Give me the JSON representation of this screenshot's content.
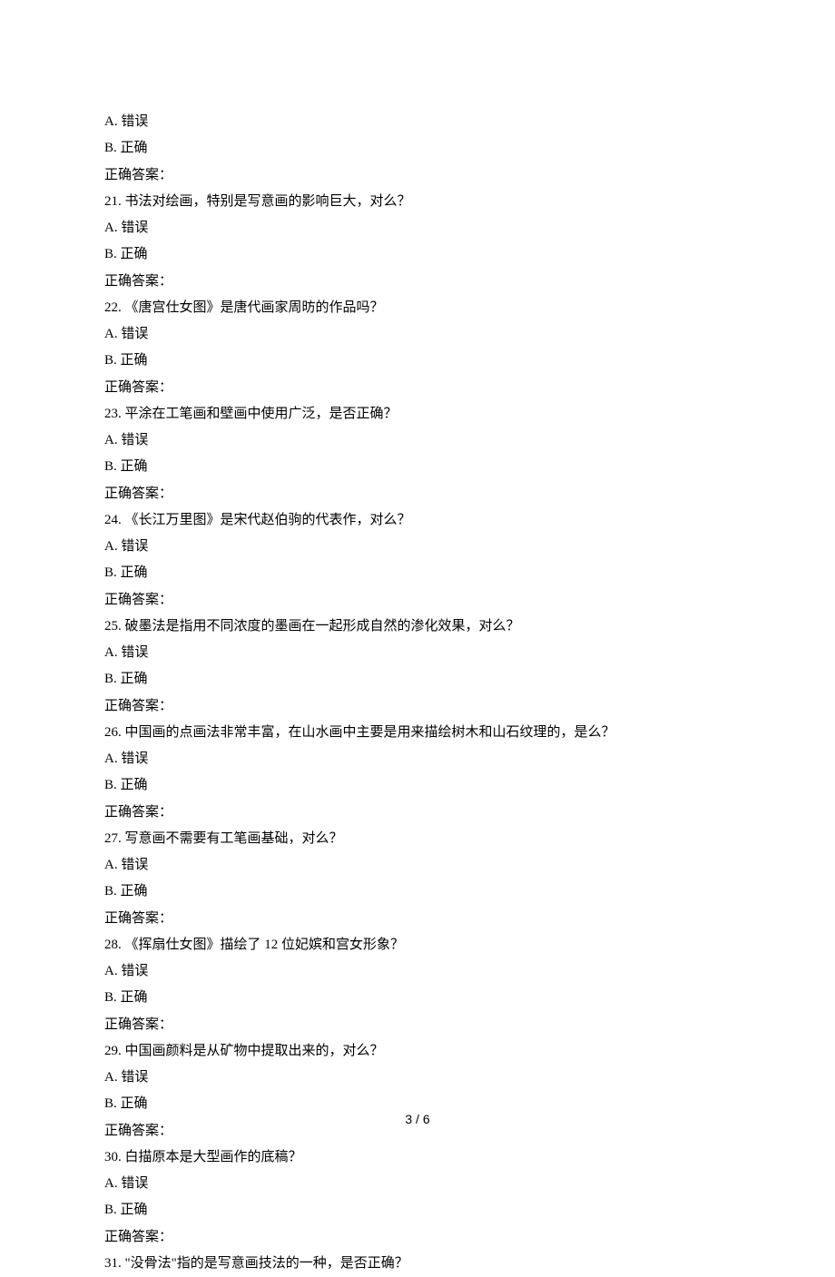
{
  "lines": [
    "A.  错误",
    "B.  正确",
    "正确答案：",
    "21.    书法对绘画，特别是写意画的影响巨大，对么？",
    "A.  错误",
    "B.  正确",
    "正确答案：",
    "22.    《唐宫仕女图》是唐代画家周昉的作品吗？",
    "A.  错误",
    "B.  正确",
    "正确答案：",
    "23.    平涂在工笔画和壁画中使用广泛，是否正确？",
    "A.  错误",
    "B.  正确",
    "正确答案：",
    "24.    《长江万里图》是宋代赵伯驹的代表作，对么？",
    "A.  错误",
    "B.  正确",
    "正确答案：",
    "25.    破墨法是指用不同浓度的墨画在一起形成自然的渗化效果，对么？",
    "A.  错误",
    "B.  正确",
    "正确答案：",
    "26.    中国画的点画法非常丰富，在山水画中主要是用来描绘树木和山石纹理的，是么？",
    "A.  错误",
    "B.  正确",
    "正确答案：",
    "27.    写意画不需要有工笔画基础，对么？",
    "A.  错误",
    "B.  正确",
    "正确答案：",
    "28.    《挥扇仕女图》描绘了 12 位妃嫔和宫女形象？",
    "A.  错误",
    "B.  正确",
    "正确答案：",
    "29.    中国画颜料是从矿物中提取出来的，对么？",
    "A.  错误",
    "B.  正确",
    "正确答案：",
    "30.    白描原本是大型画作的底稿？",
    "A.  错误",
    "B.  正确",
    "正确答案：",
    "31.    \"没骨法\"指的是写意画技法的一种，是否正确？"
  ],
  "footer": "3  /  6"
}
